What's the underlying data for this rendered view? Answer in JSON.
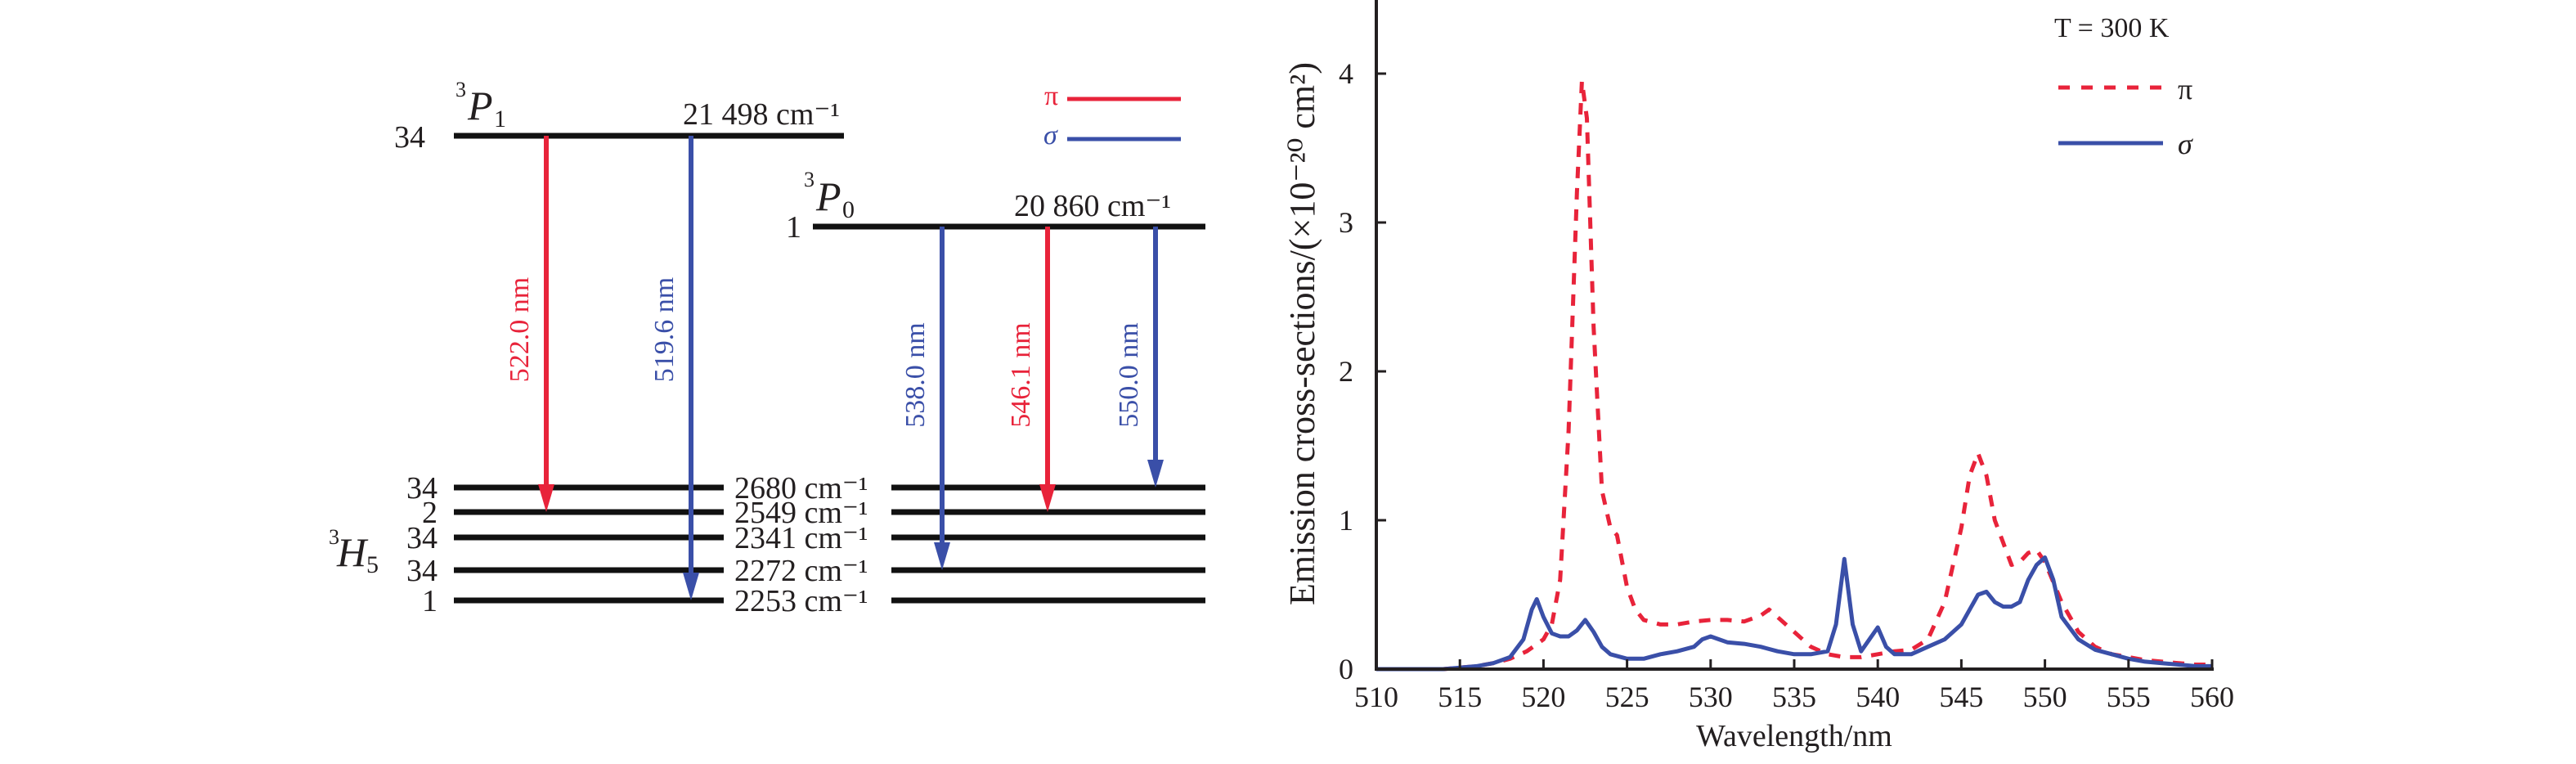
{
  "colors": {
    "pi": "#e8233a",
    "sigma": "#3a4fa8",
    "level": "#111111",
    "text": "#231f20"
  },
  "diagram": {
    "upper_states": [
      {
        "term": "P",
        "sup": "3",
        "sub": "1",
        "degeneracy": "34",
        "energy": "21 498 cm⁻¹"
      },
      {
        "term": "P",
        "sup": "3",
        "sub": "0",
        "degeneracy": "1",
        "energy": "20 860 cm⁻¹"
      }
    ],
    "lower_manifold": {
      "term": "H",
      "sup": "3",
      "sub": "5"
    },
    "lower_levels": [
      {
        "degeneracy": "34",
        "energy": "2680 cm⁻¹"
      },
      {
        "degeneracy": "2",
        "energy": "2549 cm⁻¹"
      },
      {
        "degeneracy": "34",
        "energy": "2341 cm⁻¹"
      },
      {
        "degeneracy": "34",
        "energy": "2272 cm⁻¹"
      },
      {
        "degeneracy": "1",
        "energy": "2253 cm⁻¹"
      }
    ],
    "transitions": [
      {
        "label": "522.0 nm",
        "polarization": "pi",
        "from": "3P1",
        "to_level": 1
      },
      {
        "label": "519.6 nm",
        "polarization": "sigma",
        "from": "3P1",
        "to_level": 4
      },
      {
        "label": "538.0 nm",
        "polarization": "sigma",
        "from": "3P0",
        "to_level": 3
      },
      {
        "label": "546.1 nm",
        "polarization": "pi",
        "from": "3P0",
        "to_level": 1
      },
      {
        "label": "550.0 nm",
        "polarization": "sigma",
        "from": "3P0",
        "to_level": 0
      }
    ],
    "legend": [
      {
        "symbol": "π",
        "polarization": "pi"
      },
      {
        "symbol": "σ",
        "polarization": "sigma"
      }
    ]
  },
  "chart_data": {
    "type": "line",
    "title": "",
    "annotation": "T = 300 K",
    "xlabel": "Wavelength/nm",
    "ylabel": "Emission cross-sections/(×10⁻²⁰ cm²)",
    "xlim": [
      510,
      560
    ],
    "ylim": [
      0,
      4.4
    ],
    "xticks": [
      510,
      515,
      520,
      525,
      530,
      535,
      540,
      545,
      550,
      555,
      560
    ],
    "yticks": [
      0,
      1,
      2,
      3,
      4
    ],
    "grid": false,
    "legend_position": "top-right",
    "series": [
      {
        "name": "π",
        "style": "dashed",
        "color": "#e8233a",
        "x": [
          510,
          512,
          514,
          516,
          517,
          518,
          519,
          520,
          520.5,
          521,
          521.5,
          522,
          522.3,
          522.6,
          523,
          523.5,
          524,
          524.4,
          525,
          525.5,
          526,
          527,
          528,
          529,
          530,
          531,
          532,
          533,
          533.5,
          534,
          535,
          536,
          537,
          538,
          539,
          540,
          541,
          542,
          543,
          544,
          545,
          545.5,
          546,
          546.5,
          547,
          547.5,
          548,
          548.5,
          549,
          549.5,
          550,
          551,
          552,
          553,
          554,
          555,
          556,
          557,
          558,
          559,
          560
        ],
        "y": [
          0.0,
          0.0,
          0.0,
          0.02,
          0.04,
          0.07,
          0.12,
          0.2,
          0.3,
          0.6,
          1.6,
          3.2,
          3.95,
          3.7,
          2.3,
          1.2,
          0.95,
          0.9,
          0.55,
          0.4,
          0.33,
          0.3,
          0.3,
          0.32,
          0.33,
          0.33,
          0.32,
          0.36,
          0.4,
          0.35,
          0.25,
          0.15,
          0.1,
          0.08,
          0.08,
          0.1,
          0.12,
          0.13,
          0.2,
          0.45,
          0.95,
          1.3,
          1.45,
          1.3,
          1.0,
          0.85,
          0.7,
          0.72,
          0.78,
          0.8,
          0.72,
          0.45,
          0.25,
          0.15,
          0.1,
          0.08,
          0.06,
          0.05,
          0.04,
          0.03,
          0.03
        ]
      },
      {
        "name": "σ",
        "style": "solid",
        "color": "#3a4fa8",
        "x": [
          510,
          512,
          514,
          515,
          516,
          517,
          518,
          518.8,
          519.3,
          519.6,
          520,
          520.5,
          521,
          521.5,
          522,
          522.5,
          523,
          523.5,
          524,
          525,
          526,
          527,
          528,
          529,
          529.5,
          530,
          530.5,
          531,
          532,
          533,
          534,
          535,
          536,
          537,
          537.5,
          538,
          538.5,
          539,
          539.5,
          540,
          540.5,
          541,
          542,
          543,
          544,
          545,
          545.5,
          546,
          546.5,
          547,
          547.5,
          548,
          548.5,
          549,
          549.5,
          550,
          550.5,
          551,
          552,
          553,
          554,
          555,
          556,
          557,
          558,
          559,
          560
        ],
        "y": [
          0.0,
          0.0,
          0.0,
          0.01,
          0.02,
          0.04,
          0.08,
          0.2,
          0.4,
          0.47,
          0.35,
          0.24,
          0.22,
          0.22,
          0.26,
          0.33,
          0.25,
          0.15,
          0.1,
          0.07,
          0.07,
          0.1,
          0.12,
          0.15,
          0.2,
          0.22,
          0.2,
          0.18,
          0.17,
          0.15,
          0.12,
          0.1,
          0.1,
          0.12,
          0.3,
          0.74,
          0.3,
          0.12,
          0.2,
          0.28,
          0.15,
          0.1,
          0.1,
          0.15,
          0.2,
          0.3,
          0.4,
          0.5,
          0.52,
          0.45,
          0.42,
          0.42,
          0.45,
          0.6,
          0.7,
          0.75,
          0.6,
          0.35,
          0.2,
          0.13,
          0.1,
          0.07,
          0.05,
          0.04,
          0.03,
          0.02,
          0.02
        ]
      }
    ]
  }
}
